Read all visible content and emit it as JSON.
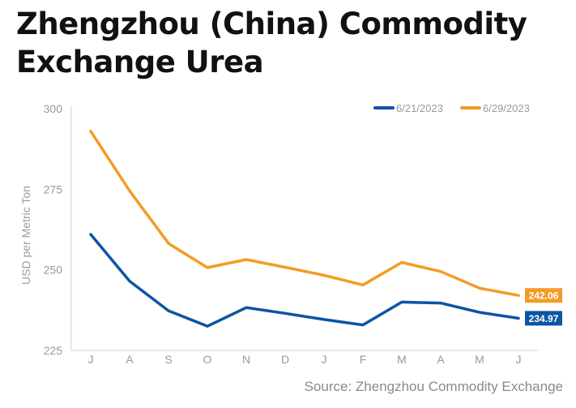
{
  "chart_data": {
    "type": "line",
    "title": "Zhengzhou (China) Commodity Exchange Urea",
    "ylabel": "USD per Metric Ton",
    "xlabel": "",
    "source": "Source: Zhengzhou Commodity Exchange",
    "categories": [
      "J",
      "A",
      "S",
      "O",
      "N",
      "D",
      "J",
      "F",
      "M",
      "A",
      "M",
      "J"
    ],
    "yticks": [
      "300",
      "275",
      "250",
      "225"
    ],
    "ylim": [
      225,
      300
    ],
    "grid": false,
    "legend_position": "top-right",
    "series": [
      {
        "name": "6/21/2023",
        "color": "#0b55a3",
        "values": [
          261.0,
          246.5,
          237.3,
          232.5,
          238.3,
          236.5,
          234.6,
          232.9,
          240.0,
          239.7,
          236.8,
          234.97
        ],
        "end_label": "234.97"
      },
      {
        "name": "6/29/2023",
        "color": "#f39c25",
        "values": [
          293.0,
          274.5,
          258.2,
          250.7,
          253.2,
          250.8,
          248.3,
          245.3,
          252.3,
          249.5,
          244.3,
          242.06
        ],
        "end_label": "242.06"
      }
    ]
  }
}
